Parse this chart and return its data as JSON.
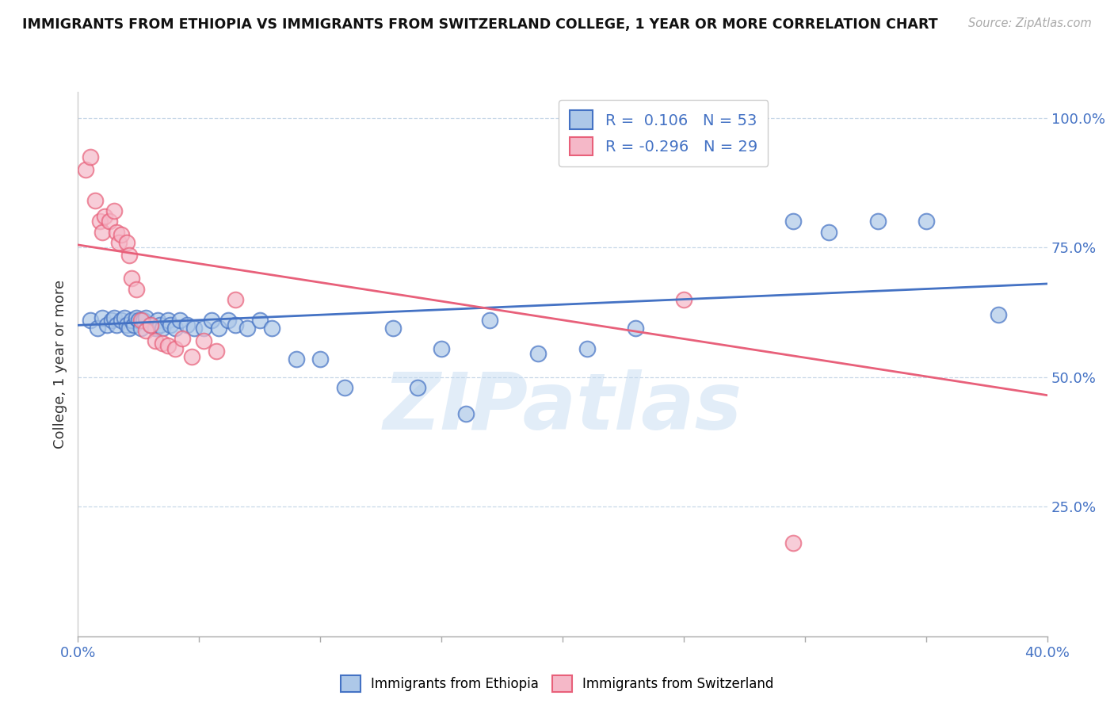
{
  "title": "IMMIGRANTS FROM ETHIOPIA VS IMMIGRANTS FROM SWITZERLAND COLLEGE, 1 YEAR OR MORE CORRELATION CHART",
  "source": "Source: ZipAtlas.com",
  "ylabel": "College, 1 year or more",
  "xlim": [
    0.0,
    0.4
  ],
  "ylim": [
    0.0,
    1.05
  ],
  "xtick_values": [
    0.0,
    0.05,
    0.1,
    0.15,
    0.2,
    0.25,
    0.3,
    0.35,
    0.4
  ],
  "xtick_labels_shown": {
    "0.0": "0.0%",
    "0.40": "40.0%"
  },
  "ytick_values": [
    0.25,
    0.5,
    0.75,
    1.0
  ],
  "ytick_labels": [
    "25.0%",
    "50.0%",
    "75.0%",
    "100.0%"
  ],
  "blue_fill": "#adc8e8",
  "blue_edge": "#4472c4",
  "pink_fill": "#f5b8c8",
  "pink_edge": "#e8607a",
  "blue_scatter_x": [
    0.005,
    0.008,
    0.01,
    0.012,
    0.014,
    0.015,
    0.016,
    0.018,
    0.019,
    0.02,
    0.021,
    0.022,
    0.023,
    0.024,
    0.025,
    0.026,
    0.027,
    0.028,
    0.03,
    0.032,
    0.033,
    0.034,
    0.035,
    0.037,
    0.038,
    0.04,
    0.042,
    0.045,
    0.048,
    0.052,
    0.055,
    0.058,
    0.062,
    0.065,
    0.07,
    0.075,
    0.08,
    0.09,
    0.1,
    0.11,
    0.13,
    0.15,
    0.17,
    0.19,
    0.21,
    0.23,
    0.14,
    0.16,
    0.295,
    0.31,
    0.33,
    0.35,
    0.38
  ],
  "blue_scatter_y": [
    0.61,
    0.595,
    0.615,
    0.6,
    0.61,
    0.615,
    0.6,
    0.61,
    0.615,
    0.6,
    0.595,
    0.61,
    0.6,
    0.615,
    0.61,
    0.595,
    0.61,
    0.615,
    0.6,
    0.595,
    0.61,
    0.6,
    0.595,
    0.61,
    0.6,
    0.595,
    0.61,
    0.6,
    0.595,
    0.595,
    0.61,
    0.595,
    0.61,
    0.6,
    0.595,
    0.61,
    0.595,
    0.535,
    0.535,
    0.48,
    0.595,
    0.555,
    0.61,
    0.545,
    0.555,
    0.595,
    0.48,
    0.43,
    0.8,
    0.78,
    0.8,
    0.8,
    0.62
  ],
  "pink_scatter_x": [
    0.003,
    0.005,
    0.007,
    0.009,
    0.01,
    0.011,
    0.013,
    0.015,
    0.016,
    0.017,
    0.018,
    0.02,
    0.021,
    0.022,
    0.024,
    0.026,
    0.028,
    0.03,
    0.032,
    0.035,
    0.037,
    0.04,
    0.043,
    0.047,
    0.052,
    0.057,
    0.065,
    0.25,
    0.295
  ],
  "pink_scatter_y": [
    0.9,
    0.925,
    0.84,
    0.8,
    0.78,
    0.81,
    0.8,
    0.82,
    0.78,
    0.76,
    0.775,
    0.76,
    0.735,
    0.69,
    0.67,
    0.61,
    0.59,
    0.6,
    0.57,
    0.565,
    0.56,
    0.555,
    0.575,
    0.54,
    0.57,
    0.55,
    0.65,
    0.65,
    0.18
  ],
  "blue_line_x": [
    0.0,
    0.4
  ],
  "blue_line_y": [
    0.6,
    0.68
  ],
  "pink_line_x": [
    0.0,
    0.4
  ],
  "pink_line_y": [
    0.755,
    0.465
  ],
  "watermark_text": "ZIPatlas",
  "legend1_label": "R =  0.106   N = 53",
  "legend2_label": "R = -0.296   N = 29",
  "bottom_label1": "Immigrants from Ethiopia",
  "bottom_label2": "Immigrants from Switzerland"
}
